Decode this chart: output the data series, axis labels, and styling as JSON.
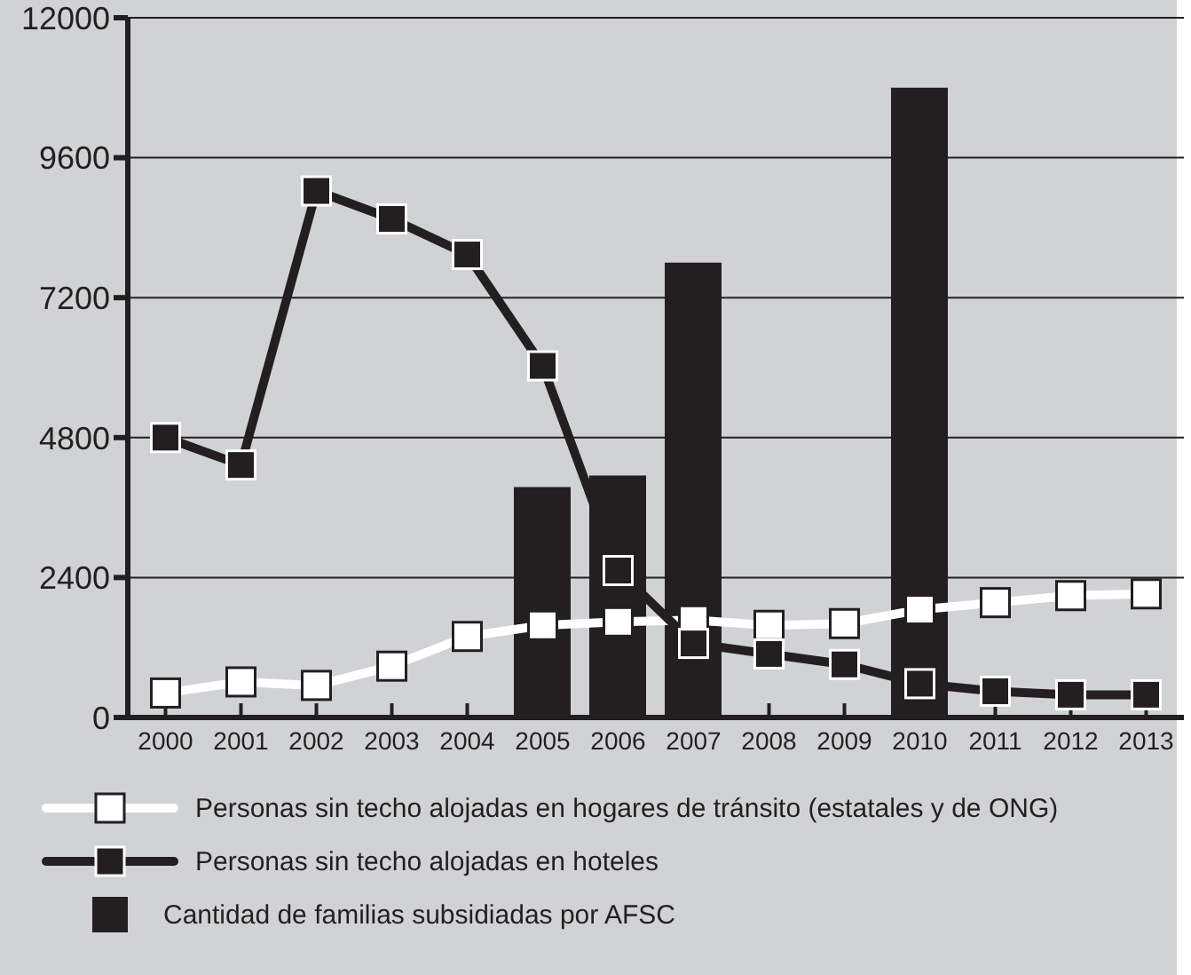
{
  "chart_data": {
    "type": "line",
    "categories": [
      "2000",
      "2001",
      "2002",
      "2003",
      "2004",
      "2005",
      "2006",
      "2007",
      "2008",
      "2009",
      "2010",
      "2011",
      "2012",
      "2013"
    ],
    "series": [
      {
        "name": "Personas sin techo alojadas en hogares de tránsito (estatales y de ONG)",
        "color": "#ffffff",
        "values": [
          420,
          610,
          550,
          880,
          1390,
          1580,
          1640,
          1670,
          1580,
          1610,
          1850,
          1970,
          2090,
          2120
        ]
      },
      {
        "name": "Personas sin techo alojadas en hoteles",
        "color": "#231f20",
        "values": [
          4800,
          4330,
          9030,
          8550,
          7940,
          6030,
          2520,
          1270,
          1090,
          910,
          580,
          450,
          390,
          390
        ]
      },
      {
        "name": "Cantidad de familias subsidiadas por AFSC",
        "type": "bar",
        "color": "#231f20",
        "values": [
          null,
          null,
          null,
          null,
          null,
          3950,
          4150,
          7800,
          null,
          null,
          10800,
          null,
          null,
          null
        ]
      }
    ],
    "ylim": [
      0,
      12000
    ],
    "yticks": [
      0,
      2400,
      4800,
      7200,
      9600,
      12000
    ],
    "grid": "y",
    "legend": "bottom",
    "marker": "square"
  }
}
